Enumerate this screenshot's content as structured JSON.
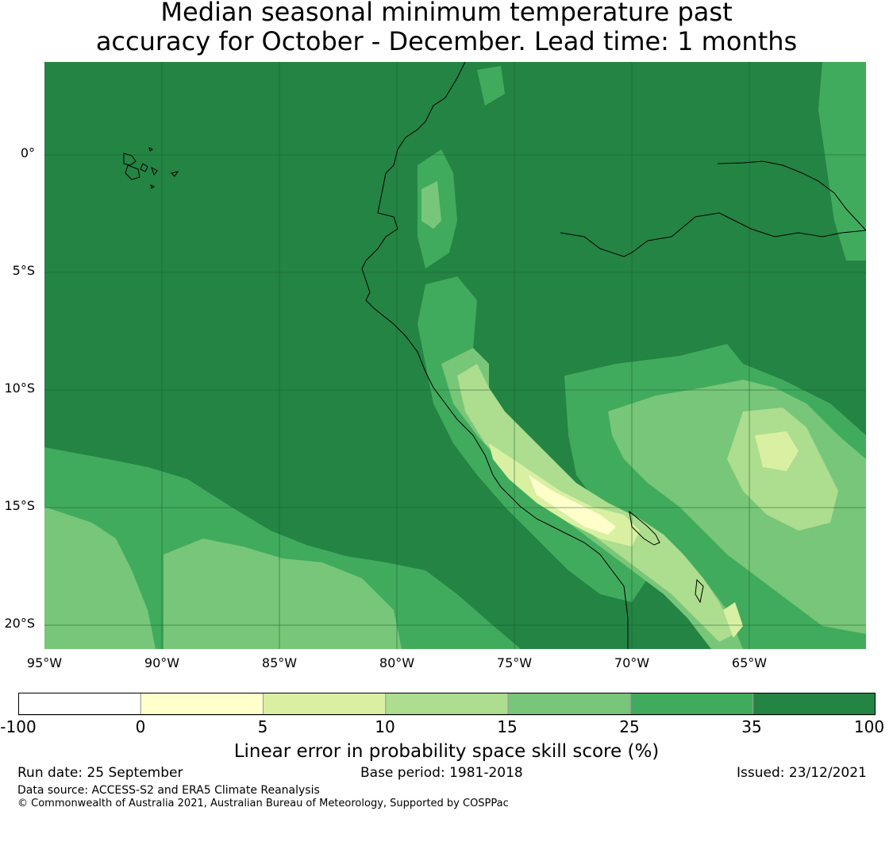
{
  "title": {
    "line1": "Median seasonal minimum temperature past",
    "line2": "accuracy for October - December. Lead time: 1 months"
  },
  "map": {
    "region": "western South America",
    "longitude_labels": [
      "95°W",
      "90°W",
      "85°W",
      "80°W",
      "75°W",
      "70°W",
      "65°W"
    ],
    "latitude_labels": [
      "0°",
      "5°S",
      "10°S",
      "15°S",
      "20°S"
    ],
    "gridlines": true,
    "coastlines": true
  },
  "legend": {
    "title": "Linear error in probability space skill score (%)",
    "ticks": [
      "-100",
      "0",
      "5",
      "10",
      "15",
      "25",
      "35",
      "100"
    ],
    "colors": [
      "#ffffff",
      "#ffffcc",
      "#d9f0a3",
      "#addd8e",
      "#78c679",
      "#41ab5d",
      "#238443"
    ]
  },
  "footer": {
    "run_date": "Run date: 25 September",
    "base_period": "Base period: 1981-2018",
    "issued": "Issued: 23/12/2021",
    "data_source": "Data source: ACCESS-S2 and ERA5 Climate Reanalysis",
    "copyright": "© Commonwealth of Australia 2021, Australian Bureau of Meteorology, Supported by COSPPac"
  }
}
